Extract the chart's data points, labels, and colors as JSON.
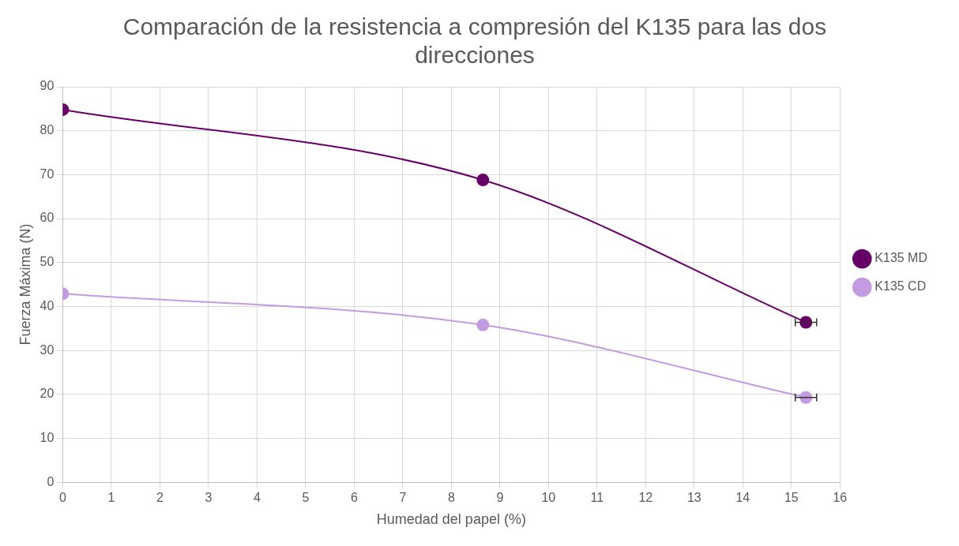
{
  "chart_data": {
    "type": "line",
    "title": "Comparación de la resistencia a compresión del K135 para las dos direcciones",
    "xlabel": "Humedad del papel (%)",
    "ylabel": "Fuerza Máxima (N)",
    "x": [
      0,
      8.65,
      15.3
    ],
    "series": [
      {
        "name": "K135 MD",
        "color": "#660066",
        "values": [
          84.8,
          68.8,
          36.4
        ],
        "xerrors": [
          null,
          null,
          0.22
        ]
      },
      {
        "name": "K135 CD",
        "color": "#c39be0",
        "values": [
          42.9,
          35.8,
          19.3
        ],
        "xerrors": [
          null,
          null,
          0.22
        ]
      }
    ],
    "xlim": [
      0,
      16
    ],
    "xticks": [
      0,
      1,
      2,
      3,
      4,
      5,
      6,
      7,
      8,
      9,
      10,
      11,
      12,
      13,
      14,
      15,
      16
    ],
    "ylim": [
      0,
      90
    ],
    "yticks": [
      0,
      10,
      20,
      30,
      40,
      50,
      60,
      70,
      80,
      90
    ],
    "grid": true,
    "legend": "right",
    "marker": "circle",
    "line_style": "solid"
  }
}
